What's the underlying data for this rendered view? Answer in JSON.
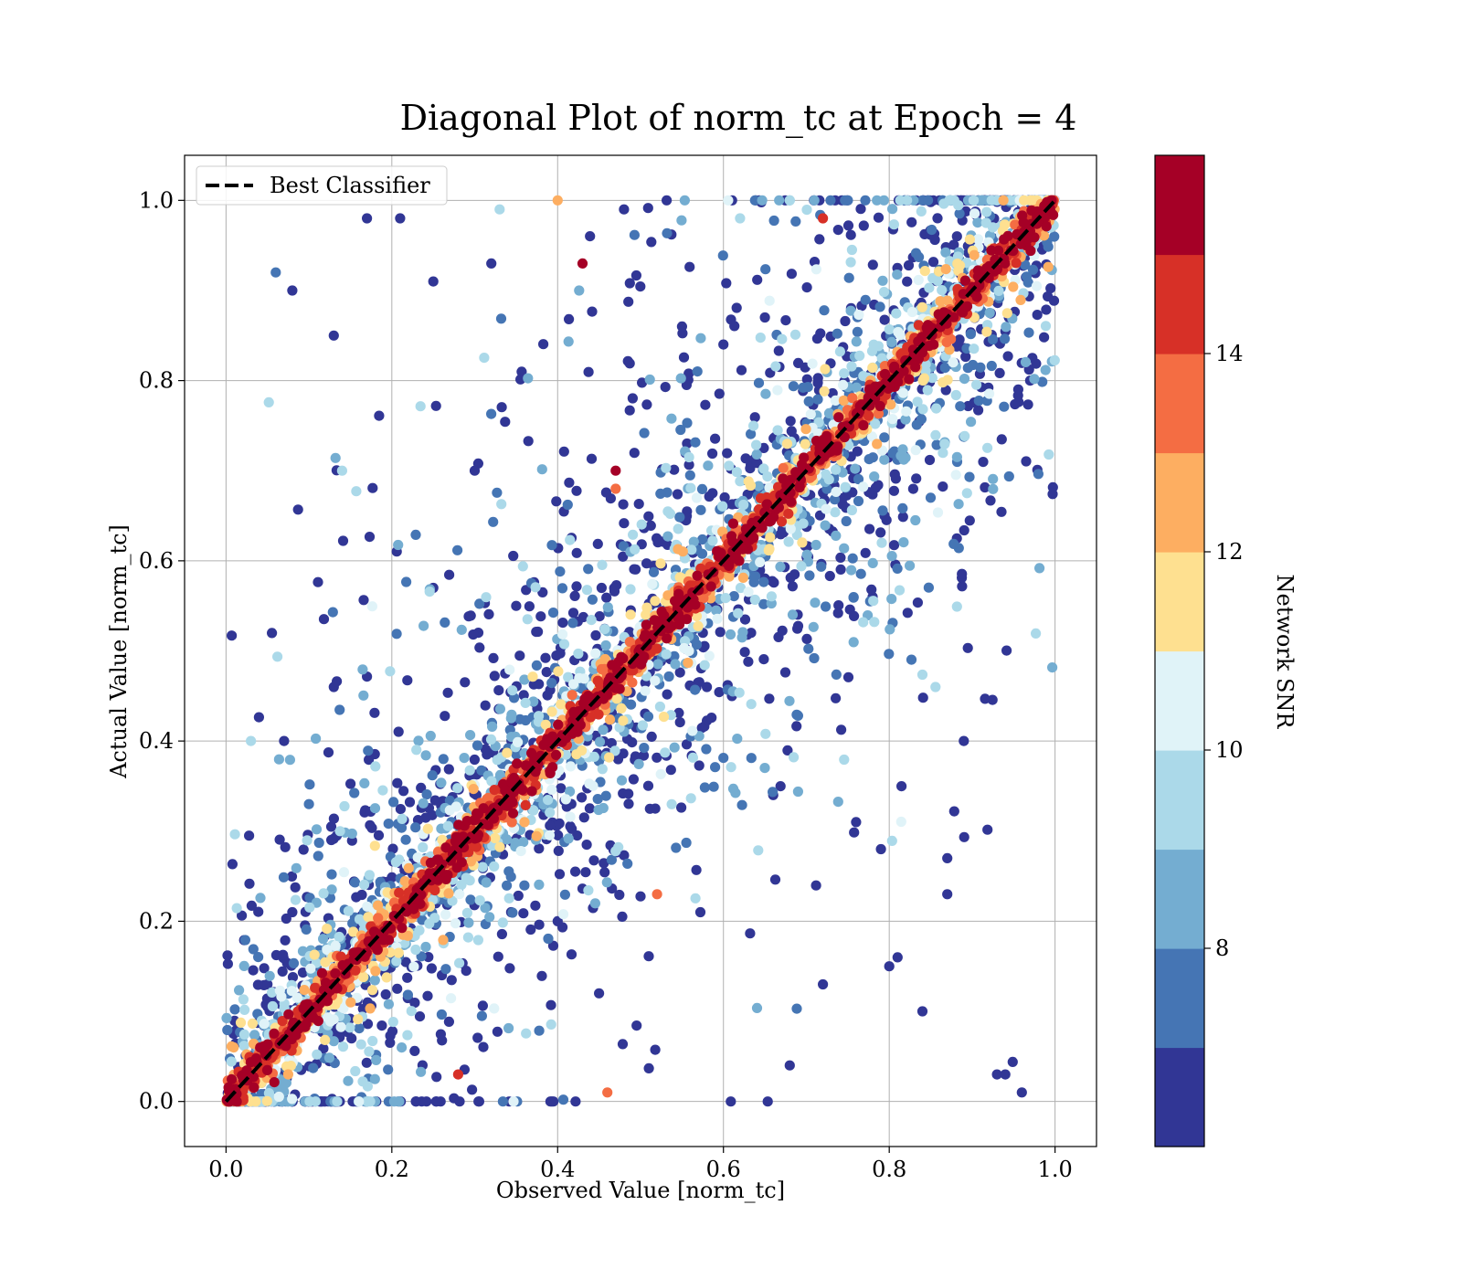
{
  "chart_data": {
    "type": "scatter",
    "title": "Diagonal Plot of norm_tc at Epoch = 4",
    "xlabel": "Observed Value [norm_tc]",
    "ylabel": "Actual Value [norm_tc]",
    "xlim": [
      -0.05,
      1.05
    ],
    "ylim": [
      -0.05,
      1.05
    ],
    "xticks": [
      "0.0",
      "0.2",
      "0.4",
      "0.6",
      "0.8",
      "1.0"
    ],
    "yticks": [
      "0.0",
      "0.2",
      "0.4",
      "0.6",
      "0.8",
      "1.0"
    ],
    "grid": true,
    "legend": {
      "position": "top-left",
      "entries": [
        "Best Classifier"
      ]
    },
    "reference_line": {
      "name": "Best Classifier",
      "style": "dashed",
      "color": "#000000",
      "x": [
        0.0,
        1.0
      ],
      "y": [
        0.0,
        1.0
      ]
    },
    "colorbar": {
      "label": "Network SNR",
      "range": [
        6.0,
        16.0
      ],
      "ticks": [
        "8",
        "10",
        "12",
        "14"
      ],
      "tick_values": [
        8,
        10,
        12,
        14
      ],
      "colors": [
        "#313695",
        "#4575b4",
        "#74add1",
        "#abd9e9",
        "#e0f3f8",
        "#fee090",
        "#fdae61",
        "#f46d43",
        "#d73027",
        "#a50026"
      ]
    },
    "points_sample": [
      [
        0.06,
        0.92,
        7.2
      ],
      [
        0.08,
        0.9,
        6.1
      ],
      [
        0.13,
        0.85,
        6.5
      ],
      [
        0.17,
        0.98,
        6.3
      ],
      [
        0.05,
        0.13,
        6.4
      ],
      [
        0.08,
        0.21,
        6.2
      ],
      [
        0.07,
        0.4,
        6.1
      ],
      [
        0.03,
        0.4,
        9.0
      ],
      [
        0.1,
        0.33,
        7.5
      ],
      [
        0.13,
        0.46,
        6.2
      ],
      [
        0.14,
        0.7,
        9.5
      ],
      [
        0.21,
        0.98,
        6.4
      ],
      [
        0.25,
        0.91,
        6.3
      ],
      [
        0.33,
        0.99,
        9.2
      ],
      [
        0.4,
        1.0,
        12.0
      ],
      [
        0.48,
        0.99,
        6.2
      ],
      [
        0.62,
        0.98,
        9.1
      ],
      [
        0.72,
        0.98,
        14.8
      ],
      [
        0.32,
        0.93,
        6.2
      ],
      [
        0.97,
        0.8,
        6.3
      ],
      [
        0.96,
        0.01,
        6.2
      ],
      [
        0.93,
        0.03,
        6.4
      ],
      [
        0.94,
        0.03,
        6.2
      ],
      [
        0.89,
        0.4,
        6.3
      ],
      [
        0.87,
        0.27,
        6.1
      ],
      [
        0.87,
        0.23,
        6.2
      ],
      [
        0.28,
        0.03,
        14.5
      ],
      [
        0.46,
        0.01,
        13.5
      ],
      [
        0.47,
        0.7,
        15.2
      ],
      [
        0.47,
        0.68,
        13.0
      ],
      [
        0.43,
        0.93,
        15.0
      ],
      [
        0.85,
        0.67,
        7.0
      ],
      [
        0.78,
        0.56,
        6.3
      ],
      [
        0.79,
        0.28,
        6.4
      ],
      [
        0.76,
        0.31,
        6.1
      ],
      [
        0.72,
        0.13,
        6.5
      ],
      [
        0.84,
        0.1,
        6.4
      ],
      [
        0.8,
        0.15,
        6.2
      ],
      [
        0.81,
        0.16,
        6.3
      ],
      [
        0.68,
        0.04,
        6.2
      ],
      [
        0.52,
        0.23,
        13.0
      ],
      [
        0.36,
        0.31,
        12.5
      ],
      [
        0.3,
        0.7,
        6.2
      ],
      [
        0.25,
        0.57,
        6.4
      ],
      [
        0.35,
        0.55,
        6.3
      ],
      [
        0.55,
        0.86,
        6.2
      ],
      [
        0.6,
        0.84,
        6.5
      ],
      [
        0.65,
        0.87,
        6.2
      ],
      [
        0.66,
        0.34,
        6.3
      ],
      [
        0.58,
        0.46,
        6.2
      ],
      [
        0.4,
        0.2,
        6.3
      ],
      [
        0.45,
        0.12,
        6.2
      ]
    ]
  }
}
